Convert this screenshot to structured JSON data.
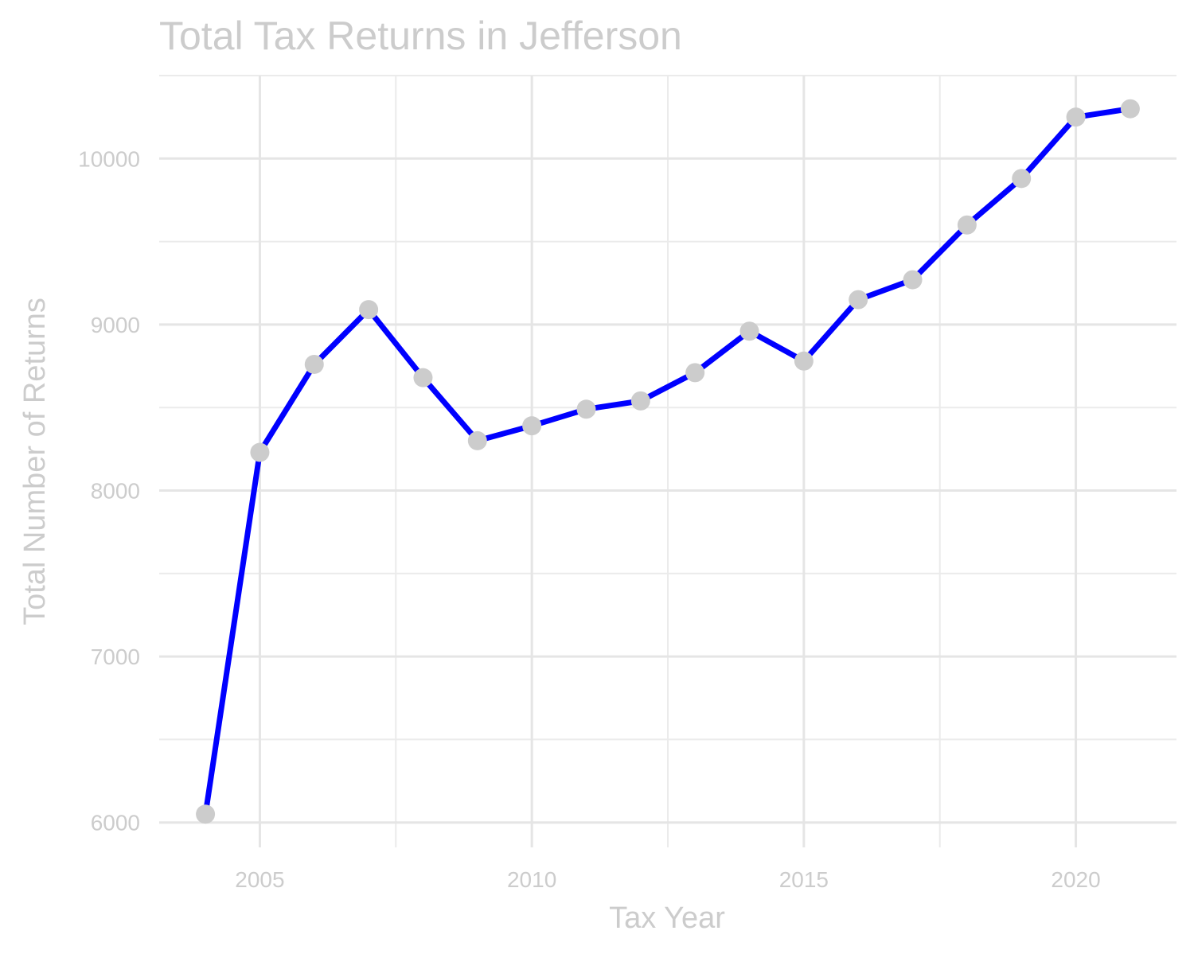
{
  "chart_data": {
    "type": "line",
    "title": "Total Tax Returns in Jefferson",
    "xlabel": "Tax Year",
    "ylabel": "Total Number of Returns",
    "x": [
      2004,
      2005,
      2006,
      2007,
      2008,
      2009,
      2010,
      2011,
      2012,
      2013,
      2014,
      2015,
      2016,
      2017,
      2018,
      2019,
      2020,
      2021
    ],
    "values": [
      6050,
      8230,
      8760,
      9090,
      8680,
      8300,
      8390,
      8490,
      8540,
      8710,
      8960,
      8780,
      9150,
      9270,
      9600,
      9880,
      10250,
      10300
    ],
    "xticks": [
      2005,
      2010,
      2015,
      2020
    ],
    "xtick_labels": [
      "2005",
      "2010",
      "2015",
      "2020"
    ],
    "yticks": [
      6000,
      7000,
      8000,
      9000,
      10000
    ],
    "ytick_labels": [
      "6000",
      "7000",
      "8000",
      "9000",
      "10000"
    ],
    "xlim": [
      2003.15,
      2021.85
    ],
    "ylim": [
      5850,
      10500
    ],
    "grid": true,
    "legend": "none",
    "colors": {
      "line": "#0000ff",
      "points": "#cccccc",
      "text": "#cccccc",
      "grid": "#e5e5e5"
    }
  }
}
